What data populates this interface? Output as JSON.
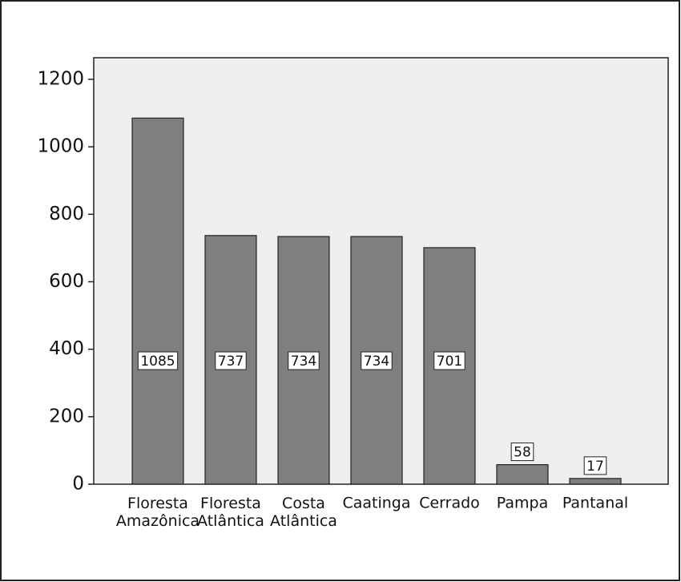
{
  "chart_data": {
    "type": "bar",
    "categories": [
      "Floresta Amazônica",
      "Floresta Atlântica",
      "Costa Atlântica",
      "Caatinga",
      "Cerrado",
      "Pampa",
      "Pantanal"
    ],
    "values": [
      1085,
      737,
      734,
      734,
      701,
      58,
      17
    ],
    "color": "#7f7f7f",
    "ylim": [
      0,
      1264
    ],
    "yticks": [
      0,
      200,
      400,
      600,
      800,
      1000,
      1200
    ]
  }
}
